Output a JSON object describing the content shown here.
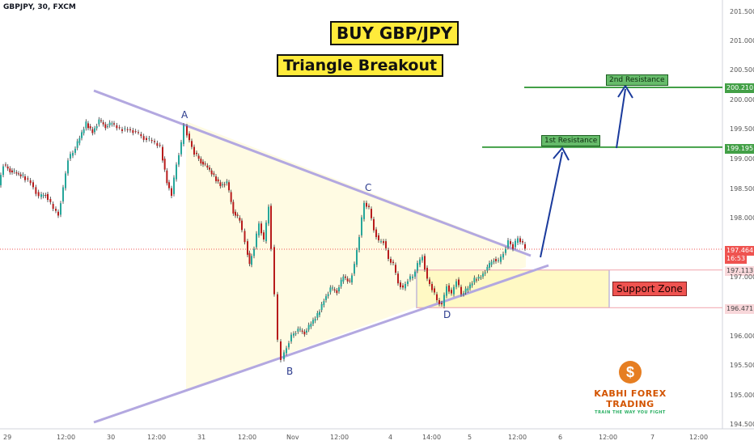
{
  "chart_data": {
    "type": "candlestick",
    "ticker": "GBPJPY, 30, FXCM",
    "annotations": {
      "title_main": "BUY GBP/JPY",
      "title_sub": "Triangle Breakout",
      "resistance_1_label": "1st Resistance",
      "resistance_2_label": "2nd Resistance",
      "support_label": "Support Zone",
      "points": [
        "A",
        "B",
        "C",
        "D"
      ]
    },
    "y_axis": {
      "ticks": [
        "201.500",
        "201.000",
        "200.500",
        "200.000",
        "199.500",
        "199.000",
        "198.500",
        "198.000",
        "197.000",
        "196.000",
        "195.500",
        "195.000",
        "194.500"
      ],
      "range": [
        194.45,
        201.65
      ]
    },
    "x_axis": {
      "ticks": [
        "29",
        "12:00",
        "30",
        "12:00",
        "31",
        "12:00",
        "Nov",
        "12:00",
        "4",
        "14:00",
        "5",
        "12:00",
        "6",
        "12:00",
        "7",
        "12:00"
      ]
    },
    "price_tags": {
      "r2": "200.210",
      "r1": "199.195",
      "current": "197.464",
      "countdown": "16:53",
      "support_top": "197.113",
      "support_bottom": "196.471"
    },
    "levels": {
      "r2": 200.21,
      "r1": 199.195,
      "current": 197.464,
      "support_top": 197.113,
      "support_bottom": 196.471
    },
    "path_points": [
      [
        0,
        198.55
      ],
      [
        6,
        198.9
      ],
      [
        14,
        198.8
      ],
      [
        22,
        198.75
      ],
      [
        30,
        198.7
      ],
      [
        40,
        198.6
      ],
      [
        50,
        198.35
      ],
      [
        58,
        198.4
      ],
      [
        68,
        198.15
      ],
      [
        74,
        198.05
      ],
      [
        80,
        198.5
      ],
      [
        86,
        199.0
      ],
      [
        92,
        199.1
      ],
      [
        100,
        199.35
      ],
      [
        108,
        199.6
      ],
      [
        116,
        199.45
      ],
      [
        124,
        199.65
      ],
      [
        132,
        199.55
      ],
      [
        140,
        199.6
      ],
      [
        150,
        199.5
      ],
      [
        160,
        199.5
      ],
      [
        170,
        199.45
      ],
      [
        180,
        199.35
      ],
      [
        190,
        199.3
      ],
      [
        200,
        199.2
      ],
      [
        208,
        198.6
      ],
      [
        214,
        198.4
      ],
      [
        220,
        198.9
      ],
      [
        226,
        199.25
      ],
      [
        230,
        199.55
      ],
      [
        236,
        199.3
      ],
      [
        242,
        199.1
      ],
      [
        250,
        198.95
      ],
      [
        258,
        198.85
      ],
      [
        266,
        198.7
      ],
      [
        274,
        198.55
      ],
      [
        282,
        198.6
      ],
      [
        290,
        198.1
      ],
      [
        298,
        197.95
      ],
      [
        305,
        197.6
      ],
      [
        310,
        197.2
      ],
      [
        316,
        197.5
      ],
      [
        322,
        197.9
      ],
      [
        328,
        197.6
      ],
      [
        334,
        198.2
      ],
      [
        338,
        197.5
      ],
      [
        342,
        196.7
      ],
      [
        346,
        195.9
      ],
      [
        350,
        195.6
      ],
      [
        356,
        195.8
      ],
      [
        362,
        196.0
      ],
      [
        370,
        196.1
      ],
      [
        378,
        196.05
      ],
      [
        386,
        196.2
      ],
      [
        394,
        196.35
      ],
      [
        402,
        196.6
      ],
      [
        410,
        196.8
      ],
      [
        418,
        196.75
      ],
      [
        426,
        197.0
      ],
      [
        434,
        196.9
      ],
      [
        440,
        197.2
      ],
      [
        446,
        197.7
      ],
      [
        452,
        198.25
      ],
      [
        458,
        198.15
      ],
      [
        464,
        197.8
      ],
      [
        470,
        197.6
      ],
      [
        476,
        197.6
      ],
      [
        482,
        197.3
      ],
      [
        488,
        197.2
      ],
      [
        494,
        196.9
      ],
      [
        500,
        196.8
      ],
      [
        506,
        196.95
      ],
      [
        512,
        197.0
      ],
      [
        518,
        197.2
      ],
      [
        524,
        197.35
      ],
      [
        530,
        196.95
      ],
      [
        536,
        196.8
      ],
      [
        542,
        196.6
      ],
      [
        548,
        196.5
      ],
      [
        554,
        196.85
      ],
      [
        560,
        196.7
      ],
      [
        566,
        196.95
      ],
      [
        572,
        196.7
      ],
      [
        580,
        196.8
      ],
      [
        588,
        196.95
      ],
      [
        596,
        197.0
      ],
      [
        604,
        197.15
      ],
      [
        612,
        197.3
      ],
      [
        618,
        197.25
      ],
      [
        624,
        197.4
      ],
      [
        630,
        197.6
      ],
      [
        636,
        197.5
      ],
      [
        642,
        197.65
      ],
      [
        648,
        197.55
      ],
      [
        652,
        197.46
      ]
    ]
  }
}
